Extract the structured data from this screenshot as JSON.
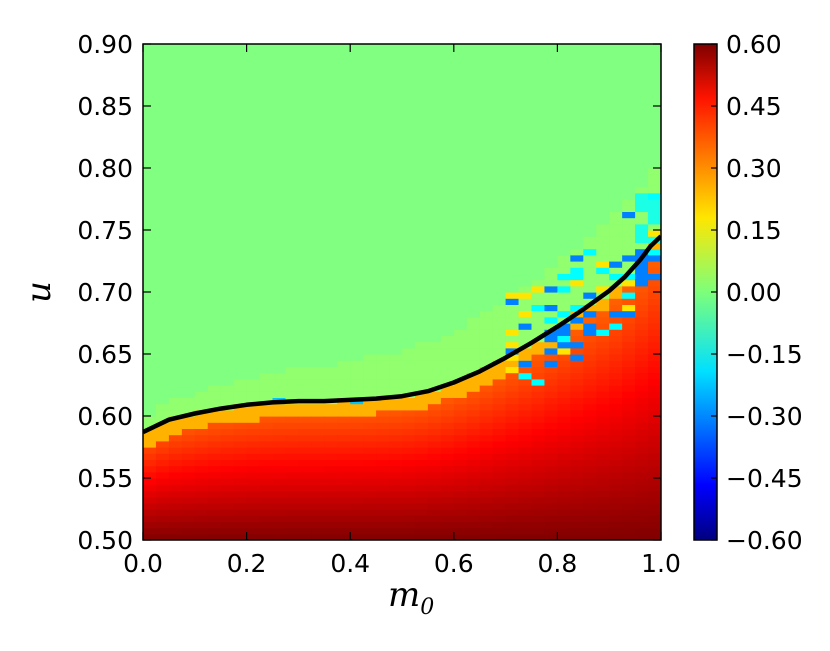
{
  "chart_data": {
    "type": "heatmap",
    "title": "",
    "xlabel": "m",
    "xlabel_subscript": "0",
    "ylabel": "u",
    "xlim": [
      0.0,
      1.0
    ],
    "ylim": [
      0.5,
      0.9
    ],
    "x_tick_labels": [
      "0.0",
      "0.2",
      "0.4",
      "0.6",
      "0.8",
      "1.0"
    ],
    "y_tick_labels": [
      "0.50",
      "0.55",
      "0.60",
      "0.65",
      "0.70",
      "0.75",
      "0.80",
      "0.85",
      "0.90"
    ],
    "colorbar": {
      "colormap": "jet",
      "range": [
        -0.6,
        0.6
      ],
      "tick_labels": [
        "0.60",
        "0.45",
        "0.30",
        "0.15",
        "0.00",
        "−0.15",
        "−0.30",
        "−0.45",
        "−0.60"
      ]
    },
    "boundary_curve": {
      "color": "#000000",
      "x": [
        0.0,
        0.05,
        0.1,
        0.15,
        0.2,
        0.25,
        0.3,
        0.35,
        0.4,
        0.45,
        0.5,
        0.55,
        0.6,
        0.65,
        0.7,
        0.75,
        0.8,
        0.85,
        0.9,
        0.93,
        0.96,
        0.98,
        1.0
      ],
      "y": [
        0.587,
        0.597,
        0.602,
        0.606,
        0.609,
        0.611,
        0.612,
        0.612,
        0.613,
        0.614,
        0.616,
        0.62,
        0.627,
        0.636,
        0.647,
        0.659,
        0.672,
        0.686,
        0.701,
        0.712,
        0.726,
        0.737,
        0.745
      ]
    },
    "field_description": {
      "below_curve": "positive values, ~0.30 near boundary rising to 0.60 at u=0.50",
      "above_curve": "approximately 0.00",
      "noisy_region": "negative patches (~ -0.30) near boundary for m0 > 0.7"
    }
  }
}
